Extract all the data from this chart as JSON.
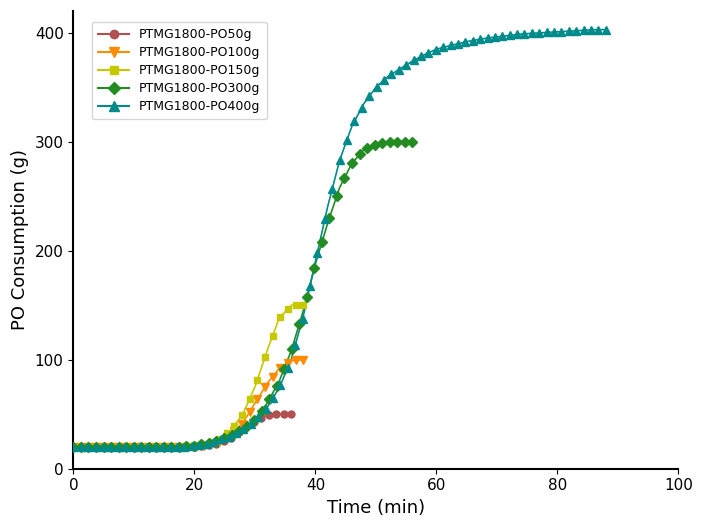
{
  "series": [
    {
      "label": "PTMG1800-PO50g",
      "color": "#b05050",
      "marker": "o",
      "po_amount": 50,
      "t_pts": [
        0,
        3,
        6,
        9,
        12,
        15,
        18,
        20,
        22,
        24,
        26,
        28,
        30,
        32,
        34,
        36
      ],
      "y_pts": [
        20,
        20,
        20,
        20,
        20,
        20,
        20,
        20,
        21,
        23,
        28,
        36,
        44,
        49,
        50,
        50
      ]
    },
    {
      "label": "PTMG1800-PO100g",
      "color": "#ff8c00",
      "marker": "v",
      "po_amount": 100,
      "t_pts": [
        0,
        3,
        6,
        9,
        12,
        15,
        18,
        20,
        22,
        24,
        26,
        28,
        30,
        32,
        34,
        36,
        38
      ],
      "y_pts": [
        20,
        20,
        20,
        20,
        20,
        20,
        20,
        20,
        21,
        24,
        31,
        42,
        60,
        78,
        92,
        99,
        100
      ]
    },
    {
      "label": "PTMG1800-PO150g",
      "color": "#c8c800",
      "marker": "s",
      "po_amount": 150,
      "t_pts": [
        0,
        3,
        6,
        9,
        12,
        15,
        18,
        20,
        22,
        24,
        26,
        28,
        30,
        32,
        34,
        36,
        37,
        38
      ],
      "y_pts": [
        20,
        20,
        20,
        20,
        20,
        20,
        20,
        21,
        23,
        27,
        35,
        50,
        75,
        108,
        138,
        150,
        150,
        150
      ]
    },
    {
      "label": "PTMG1800-PO300g",
      "color": "#228b22",
      "marker": "D",
      "po_amount": 300,
      "t_pts": [
        0,
        3,
        6,
        9,
        12,
        15,
        18,
        20,
        22,
        24,
        26,
        28,
        30,
        32,
        34,
        36,
        38,
        40,
        42,
        44,
        46,
        48,
        50,
        52,
        54,
        56
      ],
      "y_pts": [
        20,
        20,
        20,
        20,
        20,
        20,
        20,
        21,
        23,
        26,
        30,
        36,
        45,
        60,
        80,
        108,
        145,
        188,
        225,
        258,
        280,
        293,
        298,
        300,
        300,
        300
      ]
    },
    {
      "label": "PTMG1800-PO400g",
      "color": "#008b8b",
      "marker": "^",
      "po_amount": 400,
      "t_pts": [
        0,
        3,
        6,
        9,
        12,
        15,
        18,
        20,
        22,
        24,
        26,
        28,
        30,
        32,
        34,
        36,
        38,
        40,
        42,
        44,
        46,
        48,
        50,
        52,
        54,
        56,
        58,
        60,
        62,
        65,
        68,
        71,
        74,
        77,
        80,
        83,
        86,
        88
      ],
      "y_pts": [
        20,
        20,
        20,
        20,
        20,
        20,
        20,
        21,
        23,
        26,
        30,
        36,
        44,
        56,
        74,
        100,
        140,
        190,
        240,
        283,
        314,
        335,
        350,
        360,
        367,
        374,
        380,
        385,
        388,
        392,
        395,
        397,
        399,
        400,
        401,
        402,
        403,
        403
      ]
    }
  ],
  "xlabel": "Time (min)",
  "ylabel": "PO Consumption (g)",
  "xlim": [
    0,
    100
  ],
  "ylim": [
    0,
    420
  ],
  "xticks": [
    0,
    20,
    40,
    60,
    80,
    100
  ],
  "yticks": [
    0,
    100,
    200,
    300,
    400
  ],
  "background_color": "#ffffff",
  "figsize": [
    7.04,
    5.28
  ],
  "dpi": 100
}
